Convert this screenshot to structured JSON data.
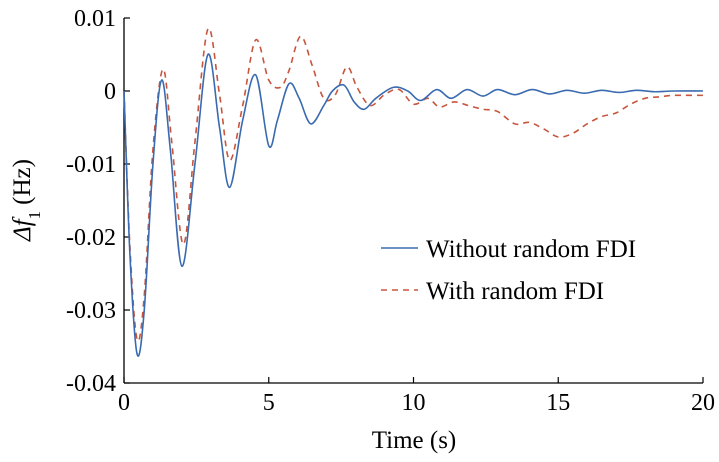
{
  "chart_data": {
    "type": "line",
    "title": "",
    "xlabel": "Time (s)",
    "ylabel_symbol": "Δf",
    "ylabel_subscript": "1",
    "ylabel_unit": "(Hz)",
    "xlim": [
      0,
      20
    ],
    "ylim": [
      -0.04,
      0.01
    ],
    "xticks": [
      0,
      5,
      10,
      15,
      20
    ],
    "xtick_labels": [
      "0",
      "5",
      "10",
      "15",
      "20"
    ],
    "yticks": [
      0.01,
      0,
      -0.01,
      -0.02,
      -0.03,
      -0.04
    ],
    "ytick_labels": [
      "0.01",
      "0",
      "-0.01",
      "-0.02",
      "-0.03",
      "-0.04"
    ],
    "grid": false,
    "legend_position": "center-right",
    "series": [
      {
        "name": "Without random FDI",
        "color": "#3a6bb0",
        "style": "solid",
        "x": [
          0,
          0.2,
          0.45,
          0.7,
          1.0,
          1.3,
          1.6,
          2.0,
          2.45,
          2.9,
          3.3,
          3.65,
          4.1,
          4.55,
          5.0,
          5.3,
          5.7,
          6.05,
          6.45,
          6.9,
          7.2,
          7.6,
          7.95,
          8.3,
          8.7,
          9.3,
          9.8,
          10.25,
          10.8,
          11.3,
          11.85,
          12.4,
          12.9,
          13.5,
          14.1,
          14.7,
          15.3,
          15.9,
          16.5,
          17.1,
          17.7,
          18.3,
          19.0,
          20.0
        ],
        "values": [
          0.0,
          -0.022,
          -0.036,
          -0.03,
          -0.01,
          0.0015,
          -0.008,
          -0.024,
          -0.01,
          0.005,
          -0.005,
          -0.0132,
          -0.004,
          0.0022,
          -0.0075,
          -0.004,
          0.001,
          -0.001,
          -0.0045,
          -0.002,
          0.0,
          0.0008,
          -0.0015,
          -0.0025,
          -0.001,
          0.0005,
          0.0,
          -0.0013,
          0.0002,
          -0.001,
          0.0002,
          -0.0007,
          0.0002,
          -0.0005,
          0.0002,
          -0.0004,
          0.0001,
          -0.0003,
          0.0001,
          -0.0002,
          0.0001,
          -0.0001,
          0.0,
          0.0
        ]
      },
      {
        "name": "With random FDI",
        "color": "#c8553d",
        "style": "dashed",
        "x": [
          0,
          0.2,
          0.45,
          0.7,
          1.0,
          1.35,
          1.65,
          2.05,
          2.45,
          2.9,
          3.3,
          3.65,
          4.1,
          4.55,
          5.0,
          5.4,
          5.7,
          6.1,
          6.5,
          6.9,
          7.3,
          7.7,
          8.05,
          8.5,
          9.0,
          9.5,
          10.0,
          10.5,
          10.9,
          11.4,
          11.9,
          12.4,
          12.9,
          13.5,
          14.0,
          14.5,
          15.0,
          15.5,
          16.0,
          16.5,
          17.0,
          17.5,
          18.0,
          18.5,
          19.0,
          20.0
        ],
        "values": [
          0.0,
          -0.021,
          -0.034,
          -0.028,
          -0.008,
          0.003,
          -0.007,
          -0.021,
          -0.007,
          0.0085,
          -0.0005,
          -0.0095,
          -0.002,
          0.007,
          0.0015,
          0.0005,
          0.0028,
          0.0075,
          0.0035,
          -0.001,
          -0.0005,
          0.0033,
          0.0005,
          -0.002,
          -0.0005,
          0.0002,
          -0.0018,
          -0.001,
          -0.0022,
          -0.0015,
          -0.002,
          -0.0025,
          -0.0028,
          -0.0045,
          -0.0043,
          -0.0052,
          -0.0063,
          -0.0058,
          -0.0045,
          -0.0035,
          -0.003,
          -0.0018,
          -0.001,
          -0.0008,
          -0.0006,
          -0.0006
        ]
      }
    ]
  }
}
